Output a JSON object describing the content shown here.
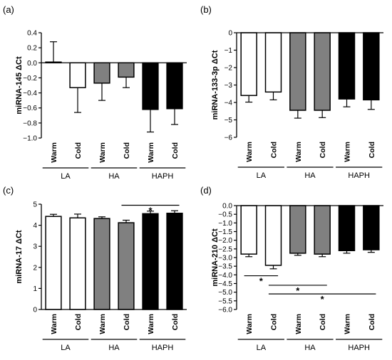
{
  "chart_data": [
    {
      "type": "bar",
      "panel_label": "(a)",
      "ylabel": "miRNA-145 ΔCt",
      "ylim": [
        -1.0,
        0.4
      ],
      "yticks": [
        0.4,
        0.2,
        0.0,
        -0.2,
        -0.4,
        -0.6,
        -0.8,
        -1.0
      ],
      "ytick_labels": [
        "0.4",
        "0.2",
        "0.0",
        "−0.2",
        "−0.4",
        "−0.6",
        "−0.8",
        "−1.0"
      ],
      "categories": [
        "Warm",
        "Cold",
        "Warm",
        "Cold",
        "Warm",
        "Cold"
      ],
      "groups": [
        "LA",
        "HA",
        "HAPH"
      ],
      "values": [
        0.01,
        -0.33,
        -0.27,
        -0.19,
        -0.62,
        -0.61
      ],
      "errors": [
        0.27,
        0.33,
        0.23,
        0.14,
        0.3,
        0.21
      ],
      "colors": [
        "#ffffff",
        "#ffffff",
        "#808080",
        "#808080",
        "#000000",
        "#000000"
      ],
      "error_direction": "away",
      "significance": []
    },
    {
      "type": "bar",
      "panel_label": "(b)",
      "ylabel": "miRNA-133-3p ΔCt",
      "ylim": [
        -6,
        0
      ],
      "yticks": [
        0,
        -1,
        -2,
        -3,
        -4,
        -5,
        -6
      ],
      "ytick_labels": [
        "0",
        "−1",
        "−2",
        "−3",
        "−4",
        "−5",
        "−6"
      ],
      "categories": [
        "Warm",
        "Cold",
        "Warm",
        "Cold",
        "Warm",
        "Cold"
      ],
      "groups": [
        "LA",
        "HA",
        "HAPH"
      ],
      "values": [
        -3.6,
        -3.4,
        -4.45,
        -4.45,
        -3.8,
        -3.85
      ],
      "errors": [
        0.38,
        0.45,
        0.45,
        0.42,
        0.45,
        0.55
      ],
      "colors": [
        "#ffffff",
        "#ffffff",
        "#808080",
        "#808080",
        "#000000",
        "#000000"
      ],
      "error_direction": "away",
      "significance": []
    },
    {
      "type": "bar",
      "panel_label": "(c)",
      "ylabel": "miRNA-17 ΔCt",
      "ylim": [
        0,
        5
      ],
      "yticks": [
        0,
        1,
        2,
        3,
        4,
        5
      ],
      "ytick_labels": [
        "0",
        "1",
        "2",
        "3",
        "4",
        "5"
      ],
      "categories": [
        "Warm",
        "Cold",
        "Warm",
        "Cold",
        "Warm",
        "Cold"
      ],
      "groups": [
        "LA",
        "HA",
        "HAPH"
      ],
      "values": [
        4.42,
        4.35,
        4.32,
        4.12,
        4.55,
        4.57
      ],
      "errors": [
        0.1,
        0.18,
        0.08,
        0.12,
        0.12,
        0.12
      ],
      "colors": [
        "#ffffff",
        "#ffffff",
        "#808080",
        "#808080",
        "#000000",
        "#000000"
      ],
      "error_direction": "away",
      "significance": [
        {
          "from_bar": 3,
          "to_bar": 5,
          "y": 4.95,
          "label": "*"
        }
      ]
    },
    {
      "type": "bar",
      "panel_label": "(d)",
      "ylabel": "miRNA-210 ΔCt",
      "ylim": [
        -6,
        0
      ],
      "yticks": [
        0,
        -0.5,
        -1,
        -1.5,
        -2,
        -2.5,
        -3,
        -3.5,
        -4,
        -4.5,
        -5,
        -5.5,
        -6
      ],
      "ytick_labels": [
        "0.0",
        "−0.5",
        "−1.0",
        "−1.5",
        "−2.0",
        "−2.5",
        "−3.0",
        "−3.5",
        "−4.0",
        "−4.5",
        "−5.0",
        "−5.5",
        "−6.0"
      ],
      "categories": [
        "Warm",
        "Cold",
        "Warm",
        "Cold",
        "Warm",
        "Cold"
      ],
      "groups": [
        "LA",
        "HA",
        "HAPH"
      ],
      "values": [
        -2.8,
        -3.45,
        -2.75,
        -2.8,
        -2.6,
        -2.55
      ],
      "errors": [
        0.15,
        0.2,
        0.12,
        0.15,
        0.15,
        0.15
      ],
      "colors": [
        "#ffffff",
        "#ffffff",
        "#808080",
        "#808080",
        "#000000",
        "#000000"
      ],
      "error_direction": "away",
      "significance": [
        {
          "from_bar": 0,
          "to_bar": 1,
          "y": -4.05,
          "label": "*"
        },
        {
          "from_bar": 1,
          "to_bar": 3,
          "y": -4.6,
          "label": "*"
        },
        {
          "from_bar": 1,
          "to_bar": 5,
          "y": -5.1,
          "label": "*"
        }
      ]
    }
  ]
}
